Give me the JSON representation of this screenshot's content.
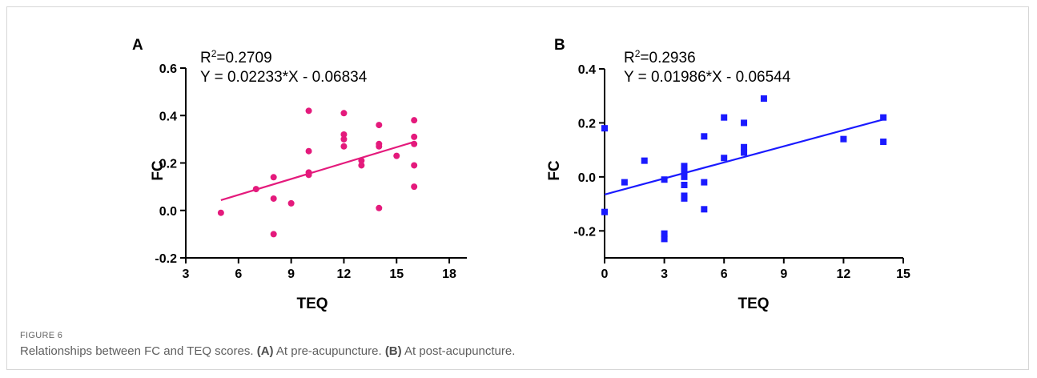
{
  "figure": {
    "label": "FIGURE 6",
    "caption_main": "Relationships between FC and TEQ scores.",
    "caption_a_tag": "(A)",
    "caption_a_text": "At pre-acupuncture.",
    "caption_b_tag": "(B)",
    "caption_b_text": "At post-acupuncture."
  },
  "chart_data": [
    {
      "type": "scatter",
      "panel": "A",
      "r2_text": "=0.2709",
      "r2_prefix": "R",
      "r2_sup": "2",
      "equation": "Y = 0.02233*X - 0.06834",
      "xlabel": "TEQ",
      "ylabel": "FC",
      "xlim": [
        3,
        19
      ],
      "ylim": [
        -0.2,
        0.6
      ],
      "xticks": [
        3,
        6,
        9,
        12,
        15,
        18
      ],
      "yticks": [
        -0.2,
        0.0,
        0.2,
        0.4,
        0.6
      ],
      "ytick_labels": [
        "-0.2",
        "0.0",
        "0.2",
        "0.4",
        "0.6"
      ],
      "marker": "circle",
      "color": "#e41a7c",
      "fit": {
        "slope": 0.02233,
        "intercept": -0.06834,
        "x_range": [
          5,
          16
        ]
      },
      "points": [
        {
          "x": 5,
          "y": -0.01
        },
        {
          "x": 7,
          "y": 0.09
        },
        {
          "x": 8,
          "y": 0.14
        },
        {
          "x": 8,
          "y": 0.05
        },
        {
          "x": 8,
          "y": -0.1
        },
        {
          "x": 9,
          "y": 0.03
        },
        {
          "x": 10,
          "y": 0.42
        },
        {
          "x": 10,
          "y": 0.25
        },
        {
          "x": 10,
          "y": 0.16
        },
        {
          "x": 10,
          "y": 0.15
        },
        {
          "x": 12,
          "y": 0.41
        },
        {
          "x": 12,
          "y": 0.32
        },
        {
          "x": 12,
          "y": 0.3
        },
        {
          "x": 12,
          "y": 0.27
        },
        {
          "x": 13,
          "y": 0.21
        },
        {
          "x": 13,
          "y": 0.19
        },
        {
          "x": 14,
          "y": 0.36
        },
        {
          "x": 14,
          "y": 0.28
        },
        {
          "x": 14,
          "y": 0.27
        },
        {
          "x": 14,
          "y": 0.01
        },
        {
          "x": 15,
          "y": 0.23
        },
        {
          "x": 16,
          "y": 0.38
        },
        {
          "x": 16,
          "y": 0.31
        },
        {
          "x": 16,
          "y": 0.28
        },
        {
          "x": 16,
          "y": 0.19
        },
        {
          "x": 16,
          "y": 0.1
        }
      ]
    },
    {
      "type": "scatter",
      "panel": "B",
      "r2_text": "=0.2936",
      "r2_prefix": "R",
      "r2_sup": "2",
      "equation": "Y = 0.01986*X - 0.06544",
      "xlabel": "TEQ",
      "ylabel": "FC",
      "xlim": [
        0,
        15
      ],
      "ylim": [
        -0.3,
        0.4
      ],
      "xticks": [
        0,
        3,
        6,
        9,
        12,
        15
      ],
      "yticks": [
        -0.2,
        0.0,
        0.2,
        0.4
      ],
      "ytick_labels": [
        "-0.2",
        "0.0",
        "0.2",
        "0.4"
      ],
      "marker": "square",
      "color": "#1a1aff",
      "fit": {
        "slope": 0.01986,
        "intercept": -0.06544,
        "x_range": [
          0,
          14
        ]
      },
      "points": [
        {
          "x": 0,
          "y": 0.18
        },
        {
          "x": 0,
          "y": -0.13
        },
        {
          "x": 1,
          "y": -0.02
        },
        {
          "x": 2,
          "y": 0.06
        },
        {
          "x": 3,
          "y": -0.01
        },
        {
          "x": 3,
          "y": -0.21
        },
        {
          "x": 3,
          "y": -0.23
        },
        {
          "x": 4,
          "y": 0.04
        },
        {
          "x": 4,
          "y": 0.02
        },
        {
          "x": 4,
          "y": 0.0
        },
        {
          "x": 4,
          "y": -0.03
        },
        {
          "x": 4,
          "y": -0.07
        },
        {
          "x": 4,
          "y": -0.08
        },
        {
          "x": 5,
          "y": 0.15
        },
        {
          "x": 5,
          "y": -0.02
        },
        {
          "x": 5,
          "y": -0.12
        },
        {
          "x": 6,
          "y": 0.22
        },
        {
          "x": 6,
          "y": 0.07
        },
        {
          "x": 7,
          "y": 0.2
        },
        {
          "x": 7,
          "y": 0.11
        },
        {
          "x": 7,
          "y": 0.09
        },
        {
          "x": 8,
          "y": 0.29
        },
        {
          "x": 12,
          "y": 0.14
        },
        {
          "x": 14,
          "y": 0.22
        },
        {
          "x": 14,
          "y": 0.13
        }
      ]
    }
  ]
}
